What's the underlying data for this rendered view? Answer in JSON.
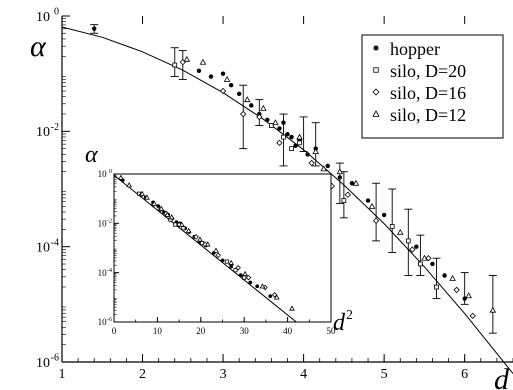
{
  "chart_data": [
    {
      "type": "scatter",
      "role": "main",
      "xlabel": "d",
      "ylabel": "α",
      "xlim": [
        1,
        6.6
      ],
      "ylim": [
        -6,
        0
      ],
      "y_scale": "log10",
      "x_ticks": [
        "1",
        "2",
        "3",
        "4",
        "5",
        "6"
      ],
      "y_ticks": [
        {
          "base": "10",
          "exp": "0",
          "value": 0
        },
        {
          "base": "10",
          "exp": "-2",
          "value": -2
        },
        {
          "base": "10",
          "exp": "-4",
          "value": -4
        },
        {
          "base": "10",
          "exp": "-6",
          "value": -6
        }
      ],
      "legend_position": "top-right",
      "series": [
        {
          "name": "hopper",
          "marker": "filled-circle",
          "points": [
            [
              1.4,
              -0.22
            ],
            [
              2.7,
              -0.95
            ],
            [
              2.85,
              -1.05
            ],
            [
              3.0,
              -1.0
            ],
            [
              3.1,
              -1.2
            ],
            [
              3.2,
              -1.35
            ],
            [
              3.35,
              -1.55
            ],
            [
              3.45,
              -1.7
            ],
            [
              3.55,
              -1.8
            ],
            [
              3.6,
              -1.9
            ],
            [
              3.7,
              -1.95
            ],
            [
              3.75,
              -1.85
            ],
            [
              3.8,
              -2.05
            ],
            [
              3.85,
              -2.1
            ],
            [
              3.9,
              -2.25
            ],
            [
              3.95,
              -2.15
            ],
            [
              4.05,
              -2.4
            ],
            [
              4.15,
              -2.3
            ],
            [
              4.3,
              -2.6
            ],
            [
              4.45,
              -2.8
            ],
            [
              4.6,
              -2.9
            ],
            [
              4.8,
              -3.2
            ],
            [
              5.0,
              -3.45
            ],
            [
              5.4,
              -4.0
            ],
            [
              5.6,
              -4.3
            ],
            [
              5.75,
              -4.5
            ],
            [
              6.0,
              -4.9
            ]
          ]
        },
        {
          "name": "silo, D=20",
          "marker": "open-square",
          "points": [
            [
              2.4,
              -0.85
            ],
            [
              3.6,
              -1.9
            ],
            [
              3.75,
              -2.1
            ],
            [
              3.85,
              -2.3
            ],
            [
              3.95,
              -2.2
            ],
            [
              4.5,
              -3.2
            ],
            [
              5.1,
              -3.65
            ],
            [
              5.3,
              -3.9
            ],
            [
              5.45,
              -4.3
            ],
            [
              5.65,
              -4.7
            ]
          ]
        },
        {
          "name": "silo, D=16",
          "marker": "open-diamond",
          "points": [
            [
              2.5,
              -0.8
            ],
            [
              3.0,
              -1.3
            ],
            [
              3.25,
              -1.7
            ],
            [
              3.45,
              -1.75
            ],
            [
              3.7,
              -2.2
            ],
            [
              4.1,
              -2.55
            ],
            [
              4.35,
              -2.95
            ],
            [
              4.55,
              -3.1
            ],
            [
              4.9,
              -3.55
            ],
            [
              5.35,
              -4.05
            ],
            [
              5.55,
              -4.2
            ],
            [
              5.9,
              -4.75
            ],
            [
              6.1,
              -5.2
            ]
          ]
        },
        {
          "name": "silo, D=12",
          "marker": "open-triangle",
          "points": [
            [
              2.55,
              -0.75
            ],
            [
              2.75,
              -0.8
            ],
            [
              3.05,
              -1.1
            ],
            [
              3.3,
              -1.45
            ],
            [
              3.5,
              -1.6
            ],
            [
              3.65,
              -1.85
            ],
            [
              3.95,
              -2.1
            ],
            [
              4.15,
              -2.35
            ],
            [
              4.25,
              -2.65
            ],
            [
              4.45,
              -2.7
            ],
            [
              4.65,
              -2.9
            ],
            [
              4.85,
              -3.3
            ],
            [
              5.2,
              -3.75
            ],
            [
              5.5,
              -4.2
            ],
            [
              5.85,
              -4.55
            ],
            [
              6.05,
              -4.85
            ],
            [
              6.35,
              -5.1
            ]
          ]
        }
      ],
      "error_bars": [
        {
          "x": 1.4,
          "y": -0.22,
          "lo": -0.3,
          "hi": -0.15
        },
        {
          "x": 2.4,
          "y": -0.85,
          "lo": -1.05,
          "hi": -0.55
        },
        {
          "x": 2.5,
          "y": -0.8,
          "lo": -1.1,
          "hi": -0.6
        },
        {
          "x": 3.25,
          "y": -1.7,
          "lo": -2.3,
          "hi": -1.2
        },
        {
          "x": 3.45,
          "y": -1.75,
          "lo": -1.9,
          "hi": -1.45
        },
        {
          "x": 3.75,
          "y": -2.1,
          "lo": -2.6,
          "hi": -1.7
        },
        {
          "x": 4.0,
          "y": -2.15,
          "lo": -2.35,
          "hi": -1.75
        },
        {
          "x": 4.15,
          "y": -2.3,
          "lo": -2.6,
          "hi": -1.85
        },
        {
          "x": 4.45,
          "y": -2.8,
          "lo": -3.25,
          "hi": -2.55
        },
        {
          "x": 4.5,
          "y": -3.2,
          "lo": -3.5,
          "hi": -2.7
        },
        {
          "x": 4.9,
          "y": -3.55,
          "lo": -3.9,
          "hi": -2.9
        },
        {
          "x": 5.1,
          "y": -3.65,
          "lo": -4.1,
          "hi": -3.0
        },
        {
          "x": 5.3,
          "y": -3.9,
          "lo": -4.5,
          "hi": -3.35
        },
        {
          "x": 5.45,
          "y": -4.3,
          "lo": -4.5,
          "hi": -3.8
        },
        {
          "x": 5.65,
          "y": -4.7,
          "lo": -4.9,
          "hi": -4.2
        },
        {
          "x": 6.0,
          "y": -4.9,
          "lo": -5.0,
          "hi": -4.45
        },
        {
          "x": 6.35,
          "y": -5.1,
          "lo": -5.5,
          "hi": -4.5
        }
      ],
      "fit_curve": {
        "form": "log10(alpha) = -0.05 - 0.142 * d^2",
        "points": [
          [
            1.0,
            -0.19
          ],
          [
            1.5,
            -0.37
          ],
          [
            2.0,
            -0.62
          ],
          [
            2.5,
            -0.94
          ],
          [
            3.0,
            -1.33
          ],
          [
            3.5,
            -1.79
          ],
          [
            4.0,
            -2.32
          ],
          [
            4.5,
            -2.93
          ],
          [
            5.0,
            -3.6
          ],
          [
            5.5,
            -4.35
          ],
          [
            6.0,
            -5.16
          ],
          [
            6.6,
            -6.2
          ]
        ]
      }
    },
    {
      "type": "scatter",
      "role": "inset",
      "xlabel": "d",
      "xlabel_exp": "2",
      "ylabel": "α",
      "xlim": [
        0,
        50
      ],
      "ylim": [
        -6,
        0
      ],
      "y_scale": "log10",
      "x_ticks": [
        "0",
        "10",
        "20",
        "30",
        "40",
        "50"
      ],
      "y_ticks": [
        {
          "base": "10",
          "exp": "0",
          "value": 0
        },
        {
          "base": "10",
          "exp": "-2",
          "value": -2
        },
        {
          "base": "10",
          "exp": "-4",
          "value": -4
        },
        {
          "base": "10",
          "exp": "-6",
          "value": -6
        }
      ],
      "series": [
        {
          "name": "hopper",
          "marker": "filled-circle",
          "points": [
            [
              2,
              -0.25
            ],
            [
              7.3,
              -0.95
            ],
            [
              9,
              -1.15
            ],
            [
              10.2,
              -1.3
            ],
            [
              11.5,
              -1.55
            ],
            [
              12.5,
              -1.65
            ],
            [
              13.4,
              -1.8
            ],
            [
              14.4,
              -1.95
            ],
            [
              15.2,
              -2.0
            ],
            [
              16.4,
              -2.2
            ],
            [
              17.3,
              -2.35
            ],
            [
              18.5,
              -2.55
            ],
            [
              19.8,
              -2.75
            ],
            [
              21.2,
              -2.9
            ],
            [
              23.0,
              -3.2
            ],
            [
              25.0,
              -3.5
            ],
            [
              27.0,
              -3.75
            ],
            [
              29.2,
              -4.1
            ],
            [
              31.4,
              -4.4
            ],
            [
              33.0,
              -4.55
            ],
            [
              36.0,
              -4.95
            ]
          ]
        },
        {
          "name": "silo, D=20",
          "marker": "open-square",
          "points": [
            [
              5.8,
              -0.8
            ],
            [
              13.0,
              -1.85
            ],
            [
              14.1,
              -2.05
            ],
            [
              16.0,
              -2.2
            ],
            [
              20.3,
              -2.8
            ],
            [
              26.0,
              -3.55
            ],
            [
              28.0,
              -3.9
            ],
            [
              30.0,
              -4.2
            ]
          ]
        },
        {
          "name": "silo, D=16",
          "marker": "open-diamond",
          "points": [
            [
              6.3,
              -0.85
            ],
            [
              9.0,
              -1.25
            ],
            [
              10.6,
              -1.45
            ],
            [
              12.0,
              -1.6
            ],
            [
              15.0,
              -2.05
            ],
            [
              18.9,
              -2.55
            ],
            [
              21.0,
              -2.85
            ],
            [
              24.0,
              -3.3
            ],
            [
              28.6,
              -3.8
            ],
            [
              31.0,
              -4.2
            ],
            [
              34.8,
              -4.6
            ],
            [
              37.0,
              -4.9
            ]
          ]
        },
        {
          "name": "silo, D=12",
          "marker": "open-triangle",
          "points": [
            [
              1.6,
              -0.15
            ],
            [
              3.5,
              -0.45
            ],
            [
              6.5,
              -0.8
            ],
            [
              7.6,
              -0.95
            ],
            [
              9.3,
              -1.2
            ],
            [
              10.9,
              -1.4
            ],
            [
              12.3,
              -1.65
            ],
            [
              13.3,
              -1.75
            ],
            [
              15.6,
              -2.05
            ],
            [
              17.2,
              -2.3
            ],
            [
              19.8,
              -2.65
            ],
            [
              21.6,
              -2.85
            ],
            [
              23.5,
              -3.1
            ],
            [
              27.0,
              -3.6
            ],
            [
              30.2,
              -4.05
            ],
            [
              34.2,
              -4.55
            ],
            [
              37.5,
              -5.0
            ],
            [
              41.0,
              -5.45
            ]
          ]
        }
      ],
      "fit_curve": {
        "form": "log10(alpha) = -0.05 - 0.142 * d^2",
        "points": [
          [
            0,
            -0.05
          ],
          [
            42,
            -6.0
          ]
        ]
      }
    }
  ],
  "legend": {
    "entries": [
      {
        "label": "hopper",
        "marker": "filled-circle"
      },
      {
        "label": "silo, D=20",
        "marker": "open-square"
      },
      {
        "label": "silo, D=16",
        "marker": "open-diamond"
      },
      {
        "label": "silo, D=12",
        "marker": "open-triangle"
      }
    ]
  }
}
